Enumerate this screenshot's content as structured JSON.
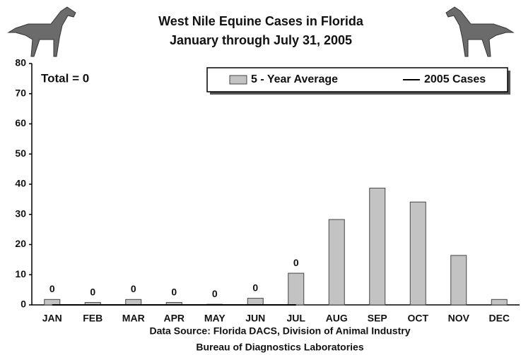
{
  "chart_data": {
    "type": "bar",
    "title": "West Nile Equine Cases in Florida",
    "subtitle": "January through July 31, 2005",
    "annotation": "Total = 0",
    "footer": [
      "Data Source: Florida DACS, Division of Animal Industry",
      "Bureau of Diagnostics Laboratories"
    ],
    "categories": [
      "JAN",
      "FEB",
      "MAR",
      "APR",
      "MAY",
      "JUN",
      "JUL",
      "AUG",
      "SEP",
      "OCT",
      "NOV",
      "DEC"
    ],
    "series": [
      {
        "name": "5 - Year Average",
        "type": "bar",
        "color": "#c3c3c3",
        "values": [
          1.8,
          0.8,
          1.8,
          0.8,
          0.2,
          2.2,
          10.5,
          28.3,
          38.7,
          34.1,
          16.4,
          1.8
        ]
      },
      {
        "name": "2005 Cases",
        "type": "line",
        "color": "#000000",
        "values": [
          0,
          0,
          0,
          0,
          0,
          0,
          0,
          null,
          null,
          null,
          null,
          null
        ]
      }
    ],
    "ylim": [
      0,
      80
    ],
    "yticks": [
      0,
      10,
      20,
      30,
      40,
      50,
      60,
      70,
      80
    ],
    "grid": false,
    "legend": "top-right"
  }
}
